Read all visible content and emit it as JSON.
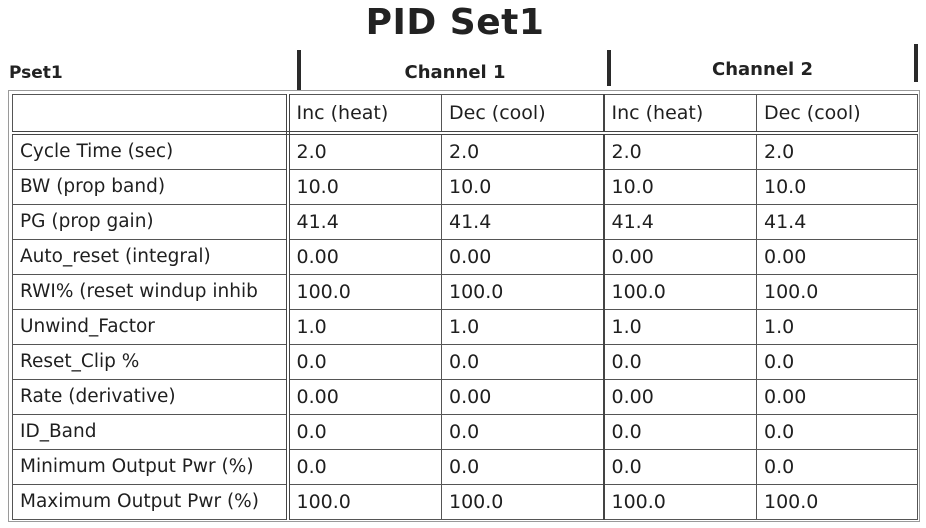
{
  "title": "PID Set1",
  "pset_label": "Pset1",
  "channel_1_label": "Channel 1",
  "channel_2_label": "Channel 2",
  "columns": [
    "Inc (heat)",
    "Dec (cool)",
    "Inc (heat)",
    "Dec (cool)"
  ],
  "rows": [
    {
      "label": "Cycle Time (sec)",
      "values": [
        "2.0",
        "2.0",
        "2.0",
        "2.0"
      ]
    },
    {
      "label": "BW (prop band)",
      "values": [
        "10.0",
        "10.0",
        "10.0",
        "10.0"
      ]
    },
    {
      "label": "PG (prop gain)",
      "values": [
        "41.4",
        "41.4",
        "41.4",
        "41.4"
      ]
    },
    {
      "label": "Auto_reset (integral)",
      "values": [
        "0.00",
        "0.00",
        "0.00",
        "0.00"
      ]
    },
    {
      "label": "RWI% (reset windup inhib",
      "values": [
        "100.0",
        "100.0",
        "100.0",
        "100.0"
      ]
    },
    {
      "label": "Unwind_Factor",
      "values": [
        "1.0",
        "1.0",
        "1.0",
        "1.0"
      ]
    },
    {
      "label": "Reset_Clip %",
      "values": [
        "0.0",
        "0.0",
        "0.0",
        "0.0"
      ]
    },
    {
      "label": "Rate (derivative)",
      "values": [
        "0.00",
        "0.00",
        "0.00",
        "0.00"
      ]
    },
    {
      "label": "ID_Band",
      "values": [
        "0.0",
        "0.0",
        "0.0",
        "0.0"
      ]
    },
    {
      "label": "Minimum  Output Pwr (%)",
      "values": [
        "0.0",
        "0.0",
        "0.0",
        "0.0"
      ]
    },
    {
      "label": "Maximum Output Pwr (%)",
      "values": [
        "100.0",
        "100.0",
        "100.0",
        "100.0"
      ]
    }
  ]
}
